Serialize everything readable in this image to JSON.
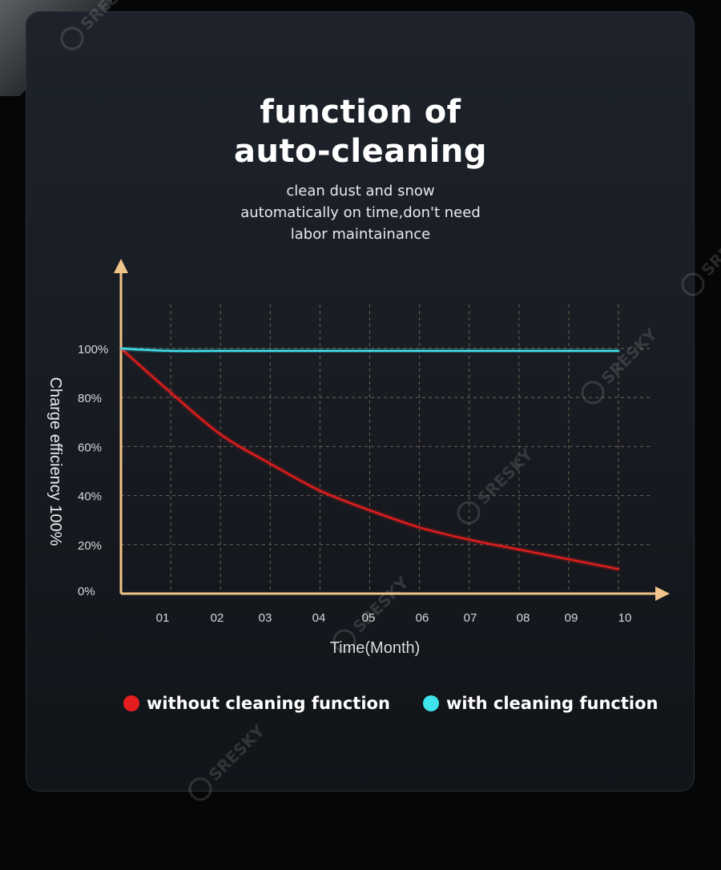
{
  "header": {
    "title_line1": "function of",
    "title_line2": "auto-cleaning",
    "subtitle_line1": "clean dust and snow",
    "subtitle_line2": "automatically on time,don't need",
    "subtitle_line3": "labor maintainance"
  },
  "watermark": {
    "text": "SRESKY"
  },
  "colors": {
    "axis": "#f0c48a",
    "grid": "#6e6250",
    "without_cleaning": "#e41e1e",
    "with_cleaning": "#3fe3ec",
    "card_background": "#1b1f26"
  },
  "chart_data": {
    "type": "line",
    "xlabel": "Time(Month)",
    "ylabel": "Charge efficiency 100%",
    "x_tick_labels": [
      "01",
      "02",
      "03",
      "04",
      "05",
      "06",
      "07",
      "08",
      "09",
      "10"
    ],
    "y_tick_labels": [
      "0%",
      "20%",
      "40%",
      "60%",
      "80%",
      "100%"
    ],
    "x_ticks": [
      1,
      2,
      3,
      4,
      5,
      6,
      7,
      8,
      9,
      10
    ],
    "y_ticks": [
      0,
      20,
      40,
      60,
      80,
      100
    ],
    "xlim": [
      0,
      10
    ],
    "ylim": [
      0,
      100
    ],
    "grid": true,
    "legend_position": "bottom",
    "series": [
      {
        "name": "without cleaning function",
        "color_key": "without_cleaning",
        "x": [
          0,
          1,
          2,
          3,
          4,
          5,
          6,
          7,
          8,
          9,
          10
        ],
        "values": [
          100,
          82,
          65,
          53,
          42,
          34,
          27,
          22,
          18,
          14,
          10
        ]
      },
      {
        "name": "with cleaning function",
        "color_key": "with_cleaning",
        "x": [
          0,
          1,
          2,
          3,
          4,
          5,
          6,
          7,
          8,
          9,
          10
        ],
        "values": [
          100,
          99,
          99,
          99,
          99,
          99,
          99,
          99,
          99,
          99,
          99
        ]
      }
    ]
  }
}
